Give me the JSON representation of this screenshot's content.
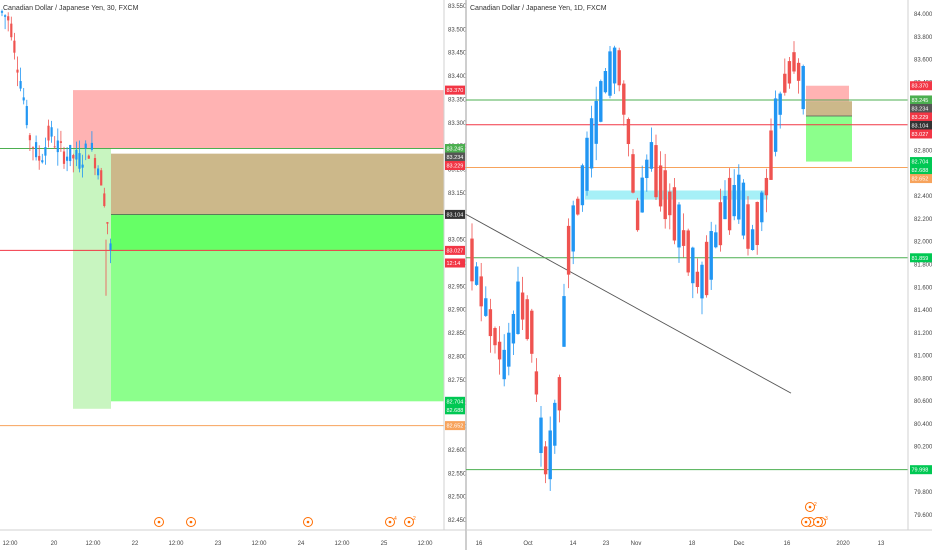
{
  "chart_data": [
    {
      "type": "candlestick",
      "title": "Canadian Dollar / Japanese Yen, 30, FXCM",
      "ylim": [
        82.42,
        83.56
      ],
      "y_ticks": [
        "83.550",
        "83.500",
        "83.450",
        "83.400",
        "83.350",
        "83.300",
        "83.250",
        "83.200",
        "83.150",
        "83.100",
        "83.050",
        "83.000",
        "82.950",
        "82.900",
        "82.850",
        "82.800",
        "82.750",
        "82.700",
        "82.650",
        "82.600",
        "82.550",
        "82.500",
        "82.450"
      ],
      "x_ticks": [
        "12:00",
        "20",
        "12:00",
        "22",
        "12:00",
        "23",
        "12:00",
        "24",
        "12:00",
        "25",
        "12:00",
        "26",
        "12:00"
      ],
      "price_labels": [
        {
          "value": 83.37,
          "text": "83.370",
          "color": "#f23645"
        },
        {
          "value": 83.245,
          "text": "83.245",
          "color": "#4caf50"
        },
        {
          "value": 83.234,
          "text": "83.234",
          "color": "#555555"
        },
        {
          "value": 83.229,
          "text": "83.229",
          "color": "#f23645"
        },
        {
          "value": 83.104,
          "text": "83.104",
          "color": "#333333"
        },
        {
          "value": 83.027,
          "text": "83.027",
          "color": "#f23645"
        },
        {
          "value": 83.0,
          "text": "12:14",
          "color": "#f23645"
        },
        {
          "value": 82.704,
          "text": "82.704",
          "color": "#00c853"
        },
        {
          "value": 82.688,
          "text": "82.688",
          "color": "#00c853"
        },
        {
          "value": 82.652,
          "text": "82.652",
          "color": "#f7a35c"
        }
      ],
      "horizontal_lines": [
        {
          "value": 83.245,
          "color": "#4caf50"
        },
        {
          "value": 83.027,
          "color": "#f23645"
        },
        {
          "value": 82.652,
          "color": "#f7a35c"
        }
      ],
      "events": [
        {
          "label": "",
          "text": ""
        },
        {
          "label": "",
          "text": ""
        },
        {
          "label": "",
          "text": ""
        },
        {
          "label": "",
          "text": "4"
        },
        {
          "label": "",
          "text": "2"
        }
      ]
    },
    {
      "type": "candlestick",
      "title": "Canadian Dollar / Japanese Yen, 1D, FXCM",
      "ylim": [
        79.52,
        84.12
      ],
      "y_ticks": [
        "84.000",
        "83.800",
        "83.600",
        "83.400",
        "83.200",
        "83.000",
        "82.800",
        "82.600",
        "82.400",
        "82.200",
        "82.000",
        "81.800",
        "81.600",
        "81.400",
        "81.200",
        "81.000",
        "80.800",
        "80.600",
        "80.400",
        "80.200",
        "80.000",
        "79.800",
        "79.600"
      ],
      "x_ticks": [
        "16",
        "Oct",
        "14",
        "23",
        "Nov",
        "18",
        "Dec",
        "16",
        "2020",
        "13"
      ],
      "price_labels": [
        {
          "value": 83.37,
          "text": "83.370",
          "color": "#f23645"
        },
        {
          "value": 83.245,
          "text": "83.245",
          "color": "#4caf50"
        },
        {
          "value": 83.234,
          "text": "83.234",
          "color": "#555555"
        },
        {
          "value": 83.229,
          "text": "83.229",
          "color": "#f23645"
        },
        {
          "value": 83.104,
          "text": "83.104",
          "color": "#333333"
        },
        {
          "value": 83.027,
          "text": "83.027",
          "color": "#f23645"
        },
        {
          "value": 82.704,
          "text": "82.704",
          "color": "#00c853"
        },
        {
          "value": 82.688,
          "text": "82.688",
          "color": "#00c853"
        },
        {
          "value": 82.652,
          "text": "82.652",
          "color": "#f7a35c"
        },
        {
          "value": 81.859,
          "text": "81.859",
          "color": "#00c853"
        },
        {
          "value": 79.998,
          "text": "79.998",
          "color": "#00c853"
        }
      ],
      "horizontal_lines": [
        {
          "value": 83.245,
          "color": "#4caf50"
        },
        {
          "value": 83.027,
          "color": "#f23645"
        },
        {
          "value": 82.652,
          "color": "#f7a35c"
        },
        {
          "value": 81.859,
          "color": "#4caf50"
        },
        {
          "value": 79.998,
          "color": "#4caf50"
        }
      ],
      "events": [
        {
          "label": "",
          "text": "2"
        },
        {
          "label": "",
          "text": "3"
        }
      ]
    }
  ]
}
